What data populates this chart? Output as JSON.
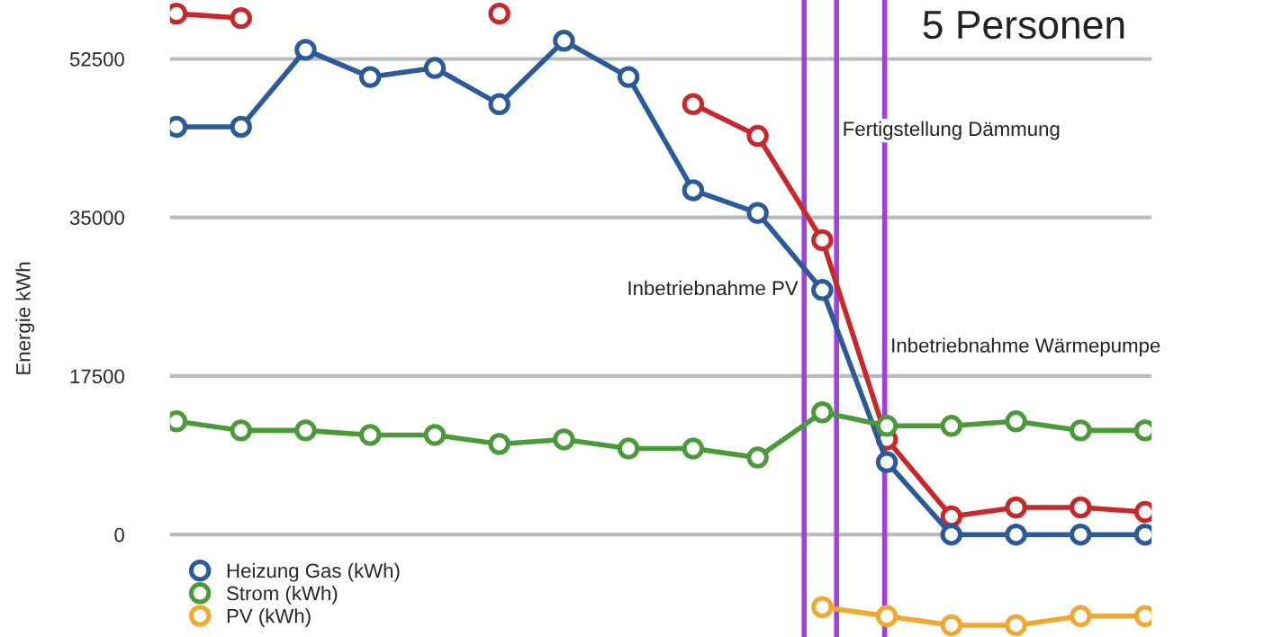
{
  "chart_data": {
    "type": "line",
    "title": "5 Personen",
    "ylabel": "Energie kWh",
    "categories": [
      null,
      null,
      null,
      null,
      null,
      null,
      null,
      null,
      null,
      null,
      null,
      null,
      null,
      null,
      null,
      null
    ],
    "series": [
      {
        "color": "#c8282a",
        "values": [
          57500,
          57000,
          null,
          null,
          null,
          57500,
          null,
          null,
          47500,
          44000,
          32500,
          10500,
          2000,
          3000,
          3000,
          2500
        ]
      },
      {
        "name": "Heizung Gas (kWh)",
        "color": "#2a5a9a",
        "values": [
          45000,
          45000,
          53500,
          50500,
          51500,
          47500,
          54500,
          50500,
          38000,
          35500,
          27000,
          8000,
          0,
          0,
          0,
          0
        ]
      },
      {
        "name": "Strom (kWh)",
        "color": "#4a9a3a",
        "values": [
          12500,
          11500,
          11500,
          11000,
          11000,
          10000,
          10500,
          9500,
          9500,
          8500,
          13500,
          12000,
          12000,
          12500,
          11500,
          11500
        ]
      },
      {
        "name": "PV (kWh)",
        "color": "#f0a830",
        "values": [
          null,
          null,
          null,
          null,
          null,
          null,
          null,
          null,
          null,
          null,
          -8000,
          -9000,
          -10000,
          -10000,
          -9000,
          -9000
        ]
      }
    ],
    "ylim": [
      -11300,
      59000
    ],
    "yticks": [
      0,
      17500,
      35000,
      52500
    ],
    "grid": "y",
    "marker": "circle",
    "line_style": "solid",
    "legend": "bottom left",
    "annotations": [
      "Inbetriebnahme PV",
      "Fertigstellung Dämmung",
      "Inbetriebnahme Wärmepumpe"
    ]
  }
}
